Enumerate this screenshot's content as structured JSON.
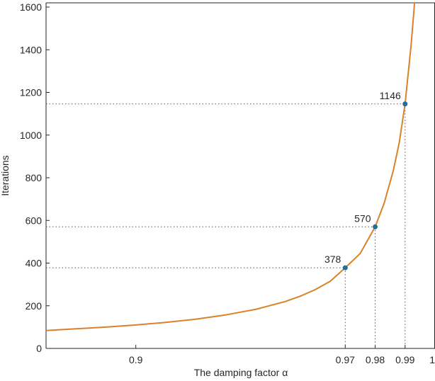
{
  "chart_data": {
    "type": "line",
    "title": "",
    "xlabel": "The damping factor α",
    "ylabel": "Iterations",
    "xlim": [
      0.87,
      1.0
    ],
    "ylim": [
      0,
      1600
    ],
    "grid": false,
    "x_ticks": [
      0.9,
      0.97,
      0.98,
      0.99,
      1
    ],
    "x_tick_labels": [
      "0.9",
      "0.97",
      "0.98",
      "0.99",
      "1"
    ],
    "y_ticks": [
      0,
      200,
      400,
      600,
      800,
      1000,
      1200,
      1400,
      1600
    ],
    "y_tick_labels": [
      "0",
      "200",
      "400",
      "600",
      "800",
      "1000",
      "1200",
      "1400",
      "1600"
    ],
    "series": [
      {
        "color": "#d9822b",
        "x": [
          0.87,
          0.88,
          0.89,
          0.9,
          0.91,
          0.92,
          0.93,
          0.94,
          0.95,
          0.955,
          0.96,
          0.965,
          0.97,
          0.975,
          0.98,
          0.983,
          0.986,
          0.988,
          0.99,
          0.992,
          0.993,
          0.994
        ],
        "y": [
          84,
          92,
          100,
          110,
          122,
          137,
          157,
          183,
          220,
          245,
          276,
          315,
          378,
          445,
          570,
          680,
          830,
          960,
          1146,
          1420,
          1590,
          1800
        ]
      }
    ],
    "highlighted_points": [
      {
        "x": 0.97,
        "y": 378,
        "label": "378"
      },
      {
        "x": 0.98,
        "y": 570,
        "label": "570"
      },
      {
        "x": 0.99,
        "y": 1146,
        "label": "1146"
      }
    ],
    "marker_color": "#1f6f9f"
  }
}
